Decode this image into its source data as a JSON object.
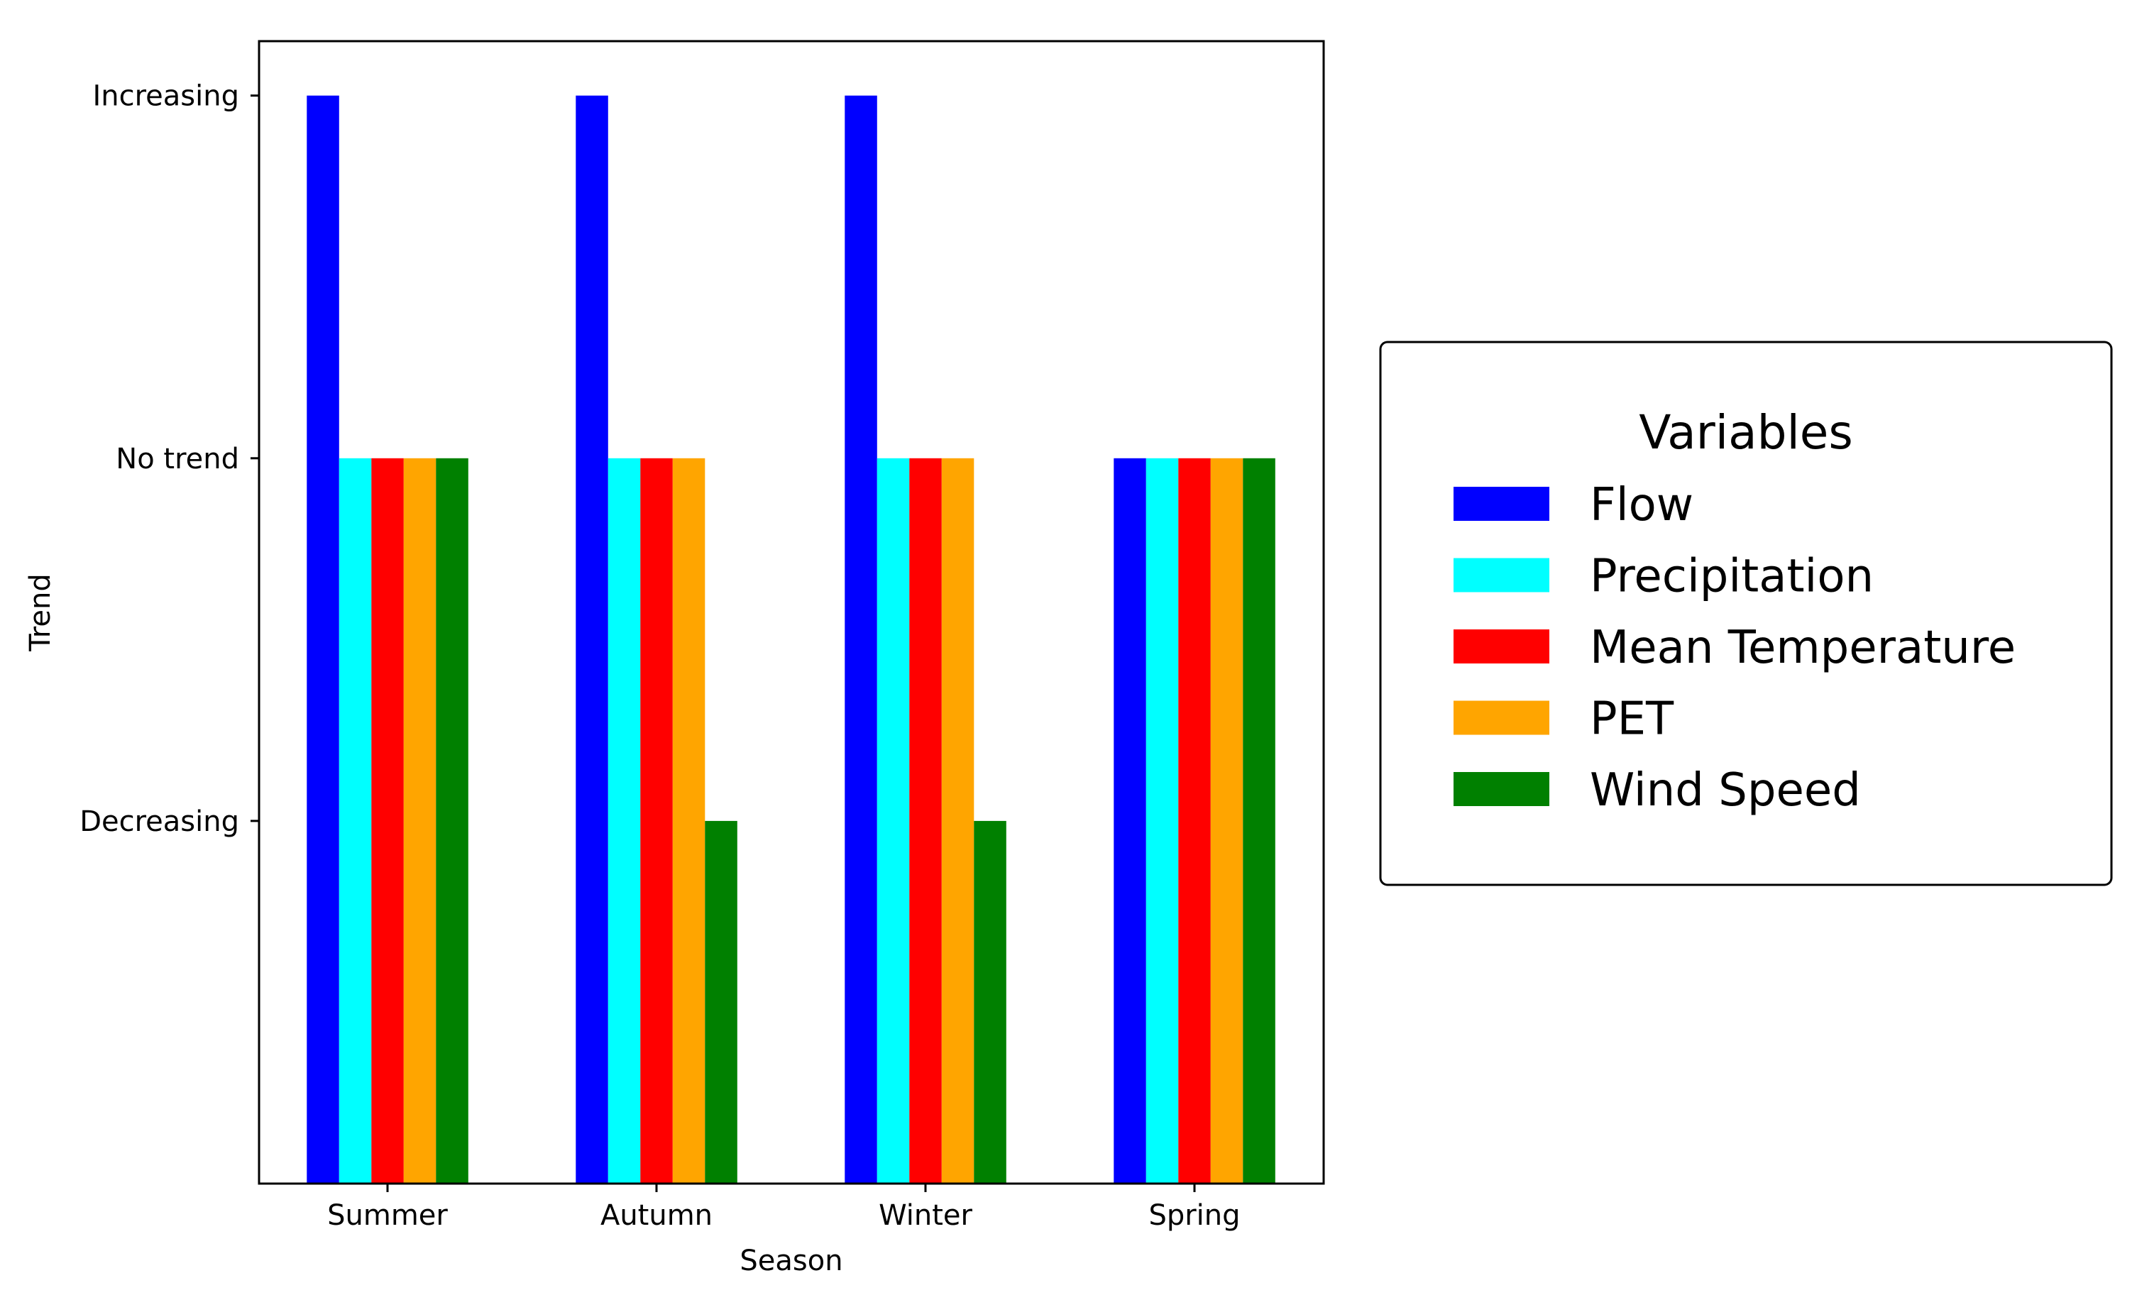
{
  "chart_data": {
    "type": "bar",
    "xlabel": "Season",
    "ylabel": "Trend",
    "categories": [
      "Summer",
      "Autumn",
      "Winter",
      "Spring"
    ],
    "y_tick_labels": [
      {
        "value": 1,
        "label": "Increasing"
      },
      {
        "value": 0,
        "label": "No trend"
      },
      {
        "value": -1,
        "label": "Decreasing"
      }
    ],
    "ylim": [
      -2,
      1.15
    ],
    "grid": false,
    "legend": {
      "title": "Variables",
      "placement": "right"
    },
    "series": [
      {
        "name": "Flow",
        "color": "#0000ff",
        "values": [
          1,
          1,
          1,
          0
        ]
      },
      {
        "name": "Precipitation",
        "color": "#00ffff",
        "values": [
          0,
          0,
          0,
          0
        ]
      },
      {
        "name": "Mean Temperature",
        "color": "#ff0000",
        "values": [
          0,
          0,
          0,
          0
        ]
      },
      {
        "name": "PET",
        "color": "#ffa500",
        "values": [
          0,
          0,
          0,
          0
        ]
      },
      {
        "name": "Wind Speed",
        "color": "#008000",
        "values": [
          0,
          -1,
          -1,
          0
        ]
      }
    ]
  }
}
